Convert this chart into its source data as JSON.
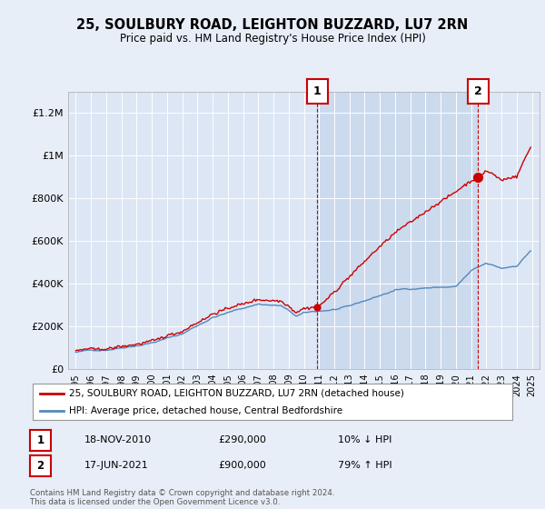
{
  "title": "25, SOULBURY ROAD, LEIGHTON BUZZARD, LU7 2RN",
  "subtitle": "Price paid vs. HM Land Registry's House Price Index (HPI)",
  "bg_color": "#e8eef8",
  "plot_bg_color": "#dce6f5",
  "shade_color": "#ccdaee",
  "legend_line1": "25, SOULBURY ROAD, LEIGHTON BUZZARD, LU7 2RN (detached house)",
  "legend_line2": "HPI: Average price, detached house, Central Bedfordshire",
  "footnote": "Contains HM Land Registry data © Crown copyright and database right 2024.\nThis data is licensed under the Open Government Licence v3.0.",
  "annotation1": {
    "label": "1",
    "date": "18-NOV-2010",
    "price": "£290,000",
    "hpi": "10% ↓ HPI",
    "x_year": 2010.88
  },
  "annotation2": {
    "label": "2",
    "date": "17-JUN-2021",
    "price": "£900,000",
    "hpi": "79% ↑ HPI",
    "x_year": 2021.46
  },
  "ylim": [
    0,
    1300000
  ],
  "xlim_start": 1994.5,
  "xlim_end": 2025.5,
  "yticks": [
    0,
    200000,
    400000,
    600000,
    800000,
    1000000,
    1200000
  ],
  "ytick_labels": [
    "£0",
    "£200K",
    "£400K",
    "£600K",
    "£800K",
    "£1M",
    "£1.2M"
  ],
  "xtick_years": [
    1995,
    1996,
    1997,
    1998,
    1999,
    2000,
    2001,
    2002,
    2003,
    2004,
    2005,
    2006,
    2007,
    2008,
    2009,
    2010,
    2011,
    2012,
    2013,
    2014,
    2015,
    2016,
    2017,
    2018,
    2019,
    2020,
    2021,
    2022,
    2023,
    2024,
    2025
  ],
  "hpi_color": "#5588bb",
  "price_color": "#cc0000",
  "ann1_price_y": 290000,
  "ann2_price_y": 900000
}
